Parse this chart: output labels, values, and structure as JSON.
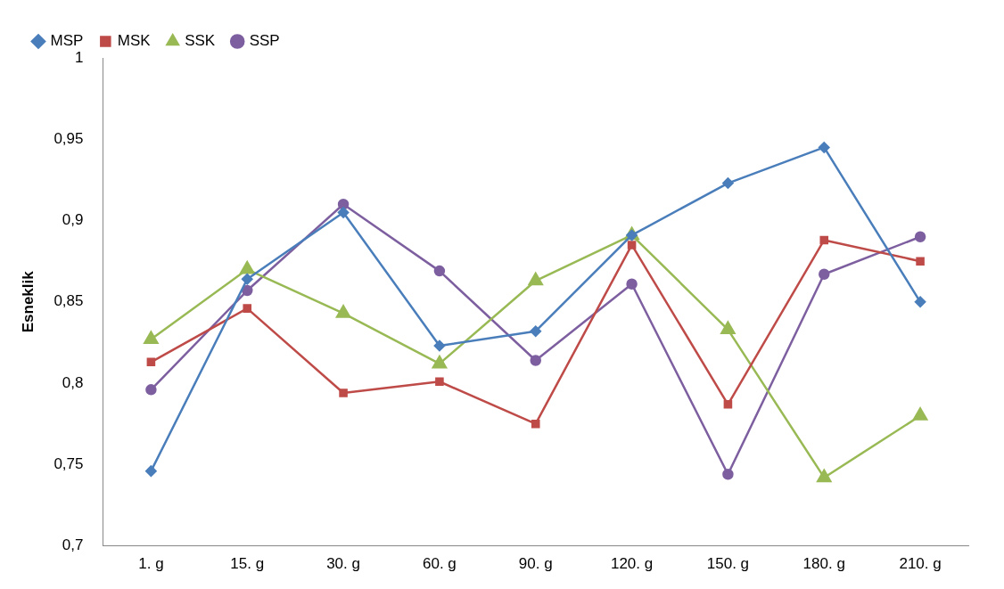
{
  "chart_data": {
    "type": "line",
    "ylabel": "Esneklik",
    "categories": [
      "1. g",
      "15. g",
      "30. g",
      "60. g",
      "90. g",
      "120. g",
      "150. g",
      "180. g",
      "210. g"
    ],
    "series": [
      {
        "name": "MSP",
        "color": "#4a7ebb",
        "marker": "diamond",
        "values": [
          0.746,
          0.864,
          0.905,
          0.823,
          0.832,
          0.891,
          0.923,
          0.945,
          0.85
        ]
      },
      {
        "name": "MSK",
        "color": "#be4b48",
        "marker": "square",
        "values": [
          0.813,
          0.846,
          0.794,
          0.801,
          0.775,
          0.885,
          0.787,
          0.888,
          0.875
        ]
      },
      {
        "name": "SSK",
        "color": "#98b954",
        "marker": "triangle",
        "values": [
          0.827,
          0.87,
          0.843,
          0.812,
          0.863,
          0.891,
          0.833,
          0.742,
          0.78
        ]
      },
      {
        "name": "SSP",
        "color": "#7d5fa0",
        "marker": "circle",
        "values": [
          0.796,
          0.857,
          0.91,
          0.869,
          0.814,
          0.861,
          0.744,
          0.867,
          0.89
        ]
      }
    ],
    "ylim": [
      0.7,
      1
    ],
    "yticks": [
      {
        "value": 0.7,
        "label": "0,7"
      },
      {
        "value": 0.75,
        "label": "0,75"
      },
      {
        "value": 0.8,
        "label": "0,8"
      },
      {
        "value": 0.85,
        "label": "0,85"
      },
      {
        "value": 0.9,
        "label": "0,9"
      },
      {
        "value": 0.95,
        "label": "0,95"
      },
      1
    ],
    "grid": false,
    "legend": "top left",
    "line_style": "solid"
  }
}
